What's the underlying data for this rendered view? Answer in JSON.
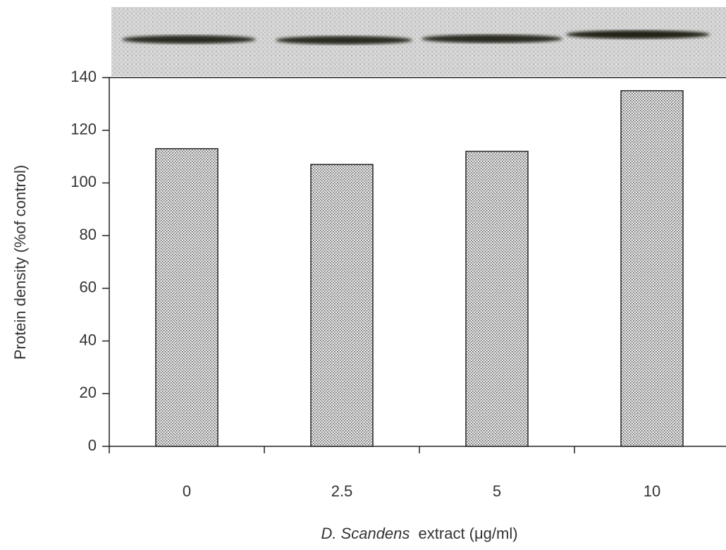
{
  "chart_data": {
    "type": "bar",
    "categories": [
      "0",
      "2.5",
      "5",
      "10"
    ],
    "values": [
      113,
      107,
      112,
      135
    ],
    "color": "#555555",
    "ylim": [
      0,
      140
    ],
    "yticks": [
      0,
      20,
      40,
      60,
      80,
      100,
      120,
      140
    ],
    "ylabel": "Protein density (%of control)",
    "xlabel": [
      "D. Scandens",
      "extract  (μg/ml)"
    ]
  }
}
